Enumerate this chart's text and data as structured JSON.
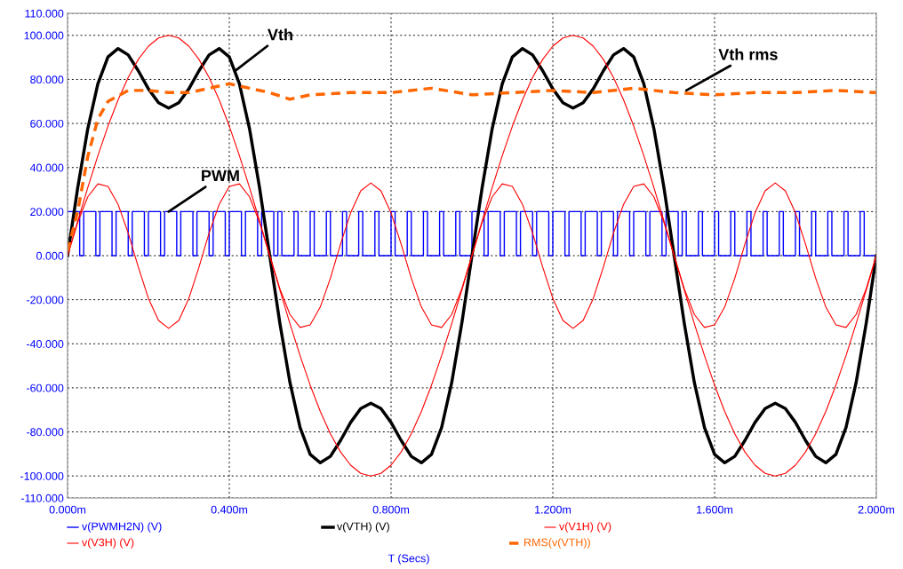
{
  "chart_data": {
    "type": "line",
    "xlabel": "T (Secs)",
    "x": [
      0,
      0.025,
      0.05,
      0.075,
      0.1,
      0.125,
      0.15,
      0.175,
      0.2,
      0.225,
      0.25,
      0.275,
      0.3,
      0.325,
      0.35,
      0.375,
      0.4,
      0.425,
      0.45,
      0.475,
      0.5,
      0.525,
      0.55,
      0.575,
      0.6,
      0.625,
      0.65,
      0.675,
      0.7,
      0.725,
      0.75,
      0.775,
      0.8,
      0.825,
      0.85,
      0.875,
      0.9,
      0.925,
      0.95,
      0.975,
      1.0,
      1.025,
      1.05,
      1.075,
      1.1,
      1.125,
      1.15,
      1.175,
      1.2,
      1.225,
      1.25,
      1.275,
      1.3,
      1.325,
      1.35,
      1.375,
      1.4,
      1.425,
      1.45,
      1.475,
      1.5,
      1.525,
      1.55,
      1.575,
      1.6,
      1.625,
      1.65,
      1.675,
      1.7,
      1.725,
      1.75,
      1.775,
      1.8,
      1.825,
      1.85,
      1.875,
      1.9,
      1.925,
      1.95,
      1.975,
      2.0
    ],
    "series": [
      {
        "name": "v(PWMH2N) (V)",
        "color": "#0000ff",
        "type": "step",
        "x": [
          0,
          0.03,
          0.04,
          0.07,
          0.08,
          0.11,
          0.12,
          0.15,
          0.16,
          0.19,
          0.2,
          0.23,
          0.24,
          0.27,
          0.28,
          0.31,
          0.32,
          0.35,
          0.36,
          0.39,
          0.4,
          0.43,
          0.44,
          0.47,
          0.48,
          0.51,
          0.52,
          0.53,
          0.56,
          0.57,
          0.6,
          0.61,
          0.64,
          0.65,
          0.68,
          0.69,
          0.72,
          0.73,
          0.76,
          0.77,
          0.8,
          0.81,
          0.84,
          0.85,
          0.88,
          0.89,
          0.92,
          0.93,
          0.96,
          0.97,
          1.0,
          1.03,
          1.04,
          1.07,
          1.08,
          1.11,
          1.12,
          1.15,
          1.16,
          1.19,
          1.2,
          1.23,
          1.24,
          1.27,
          1.28,
          1.31,
          1.32,
          1.35,
          1.36,
          1.39,
          1.4,
          1.43,
          1.44,
          1.47,
          1.48,
          1.51,
          1.52,
          1.53,
          1.56,
          1.57,
          1.6,
          1.61,
          1.64,
          1.65,
          1.68,
          1.69,
          1.72,
          1.73,
          1.76,
          1.77,
          1.8,
          1.81,
          1.84,
          1.85,
          1.88,
          1.89,
          1.92,
          1.93,
          1.96,
          1.97,
          2.0
        ],
        "values": [
          20,
          0,
          20,
          0,
          20,
          0,
          20,
          0,
          20,
          0,
          20,
          0,
          20,
          0,
          20,
          0,
          20,
          0,
          20,
          0,
          20,
          0,
          20,
          0,
          20,
          0,
          20,
          0,
          20,
          0,
          20,
          0,
          20,
          0,
          20,
          0,
          20,
          0,
          20,
          0,
          20,
          0,
          20,
          0,
          20,
          0,
          20,
          0,
          20,
          0,
          20,
          0,
          20,
          0,
          20,
          0,
          20,
          0,
          20,
          0,
          20,
          0,
          20,
          0,
          20,
          0,
          20,
          0,
          20,
          0,
          20,
          0,
          20,
          0,
          20,
          0,
          20,
          0,
          20,
          0,
          20,
          0,
          20,
          0,
          20,
          0,
          20,
          0,
          20,
          0,
          20,
          0,
          20,
          0,
          20,
          0,
          20,
          0,
          20,
          0,
          0
        ]
      },
      {
        "name": "v(VTH) (V)",
        "color": "#000000",
        "values": [
          0,
          30.6,
          57.6,
          78,
          90.2,
          94,
          91.1,
          83.9,
          75.7,
          69.4,
          67,
          69.4,
          75.7,
          83.9,
          91.1,
          94,
          90.2,
          78,
          57.6,
          30.6,
          0,
          -30.6,
          -57.6,
          -78,
          -90.2,
          -94,
          -91.1,
          -83.9,
          -75.7,
          -69.4,
          -67,
          -69.4,
          -75.7,
          -83.9,
          -91.1,
          -94,
          -90.2,
          -78,
          -57.6,
          -30.6,
          0,
          30.6,
          57.6,
          78,
          90.2,
          94,
          91.1,
          83.9,
          75.7,
          69.4,
          67,
          69.4,
          75.7,
          83.9,
          91.1,
          94,
          90.2,
          78,
          57.6,
          30.6,
          0,
          -30.6,
          -57.6,
          -78,
          -90.2,
          -94,
          -91.1,
          -83.9,
          -75.7,
          -69.4,
          -67,
          -69.4,
          -75.7,
          -83.9,
          -91.1,
          -94,
          -90.2,
          -78,
          -57.6,
          -30.6,
          0
        ]
      },
      {
        "name": "v(V1H) (V)",
        "color": "#ff0000",
        "values": [
          0,
          15.6,
          30.9,
          45.4,
          58.8,
          70.7,
          80.9,
          89.1,
          95.1,
          98.8,
          100,
          98.8,
          95.1,
          89.1,
          80.9,
          70.7,
          58.8,
          45.4,
          30.9,
          15.6,
          0,
          -15.6,
          -30.9,
          -45.4,
          -58.8,
          -70.7,
          -80.9,
          -89.1,
          -95.1,
          -98.8,
          -100,
          -98.8,
          -95.1,
          -89.1,
          -80.9,
          -70.7,
          -58.8,
          -45.4,
          -30.9,
          -15.6,
          0,
          15.6,
          30.9,
          45.4,
          58.8,
          70.7,
          80.9,
          89.1,
          95.1,
          98.8,
          100,
          98.8,
          95.1,
          89.1,
          80.9,
          70.7,
          58.8,
          45.4,
          30.9,
          15.6,
          0,
          -15.6,
          -30.9,
          -45.4,
          -58.8,
          -70.7,
          -80.9,
          -89.1,
          -95.1,
          -98.8,
          -100,
          -98.8,
          -95.1,
          -89.1,
          -80.9,
          -70.7,
          -58.8,
          -45.4,
          -30.9,
          -15.6,
          0
        ]
      },
      {
        "name": "v(V3H) (V)",
        "color": "#ff0000",
        "values": [
          0,
          15,
          26.7,
          32.6,
          31.4,
          23.3,
          10.2,
          -5.2,
          -19.4,
          -29.4,
          -33,
          -29.4,
          -19.4,
          -5.2,
          10.2,
          23.3,
          31.4,
          32.6,
          26.7,
          15,
          0,
          -15,
          -26.7,
          -32.6,
          -31.4,
          -23.3,
          -10.2,
          5.2,
          19.4,
          29.4,
          33,
          29.4,
          19.4,
          5.2,
          -10.2,
          -23.3,
          -31.4,
          -32.6,
          -26.7,
          -15,
          0,
          15,
          26.7,
          32.6,
          31.4,
          23.3,
          10.2,
          -5.2,
          -19.4,
          -29.4,
          -33,
          -29.4,
          -19.4,
          -5.2,
          10.2,
          23.3,
          31.4,
          32.6,
          26.7,
          15,
          0,
          -15,
          -26.7,
          -32.6,
          -31.4,
          -23.3,
          -10.2,
          5.2,
          19.4,
          29.4,
          33,
          29.4,
          19.4,
          5.2,
          -10.2,
          -23.3,
          -31.4,
          -32.6,
          -26.7,
          -15,
          0
        ]
      },
      {
        "name": "RMS(v(VTH))",
        "color": "#ff6600",
        "line_style": "dashed",
        "x": [
          0,
          0.025,
          0.05,
          0.075,
          0.1,
          0.15,
          0.2,
          0.25,
          0.3,
          0.35,
          0.4,
          0.45,
          0.5,
          0.55,
          0.6,
          0.7,
          0.8,
          0.9,
          1.0,
          1.1,
          1.2,
          1.3,
          1.4,
          1.5,
          1.6,
          1.7,
          1.8,
          1.9,
          2.0
        ],
        "values": [
          2,
          20,
          45,
          62,
          70,
          75,
          75,
          74,
          74,
          76,
          78,
          76,
          74,
          71,
          73,
          74,
          74,
          76,
          73,
          74,
          75,
          74,
          76,
          74,
          73,
          74,
          74,
          75,
          74
        ]
      }
    ],
    "annotations": [
      {
        "text": "Vth",
        "x": 0.415,
        "y": 84
      },
      {
        "text": "Vth rms",
        "x": 1.53,
        "y": 75
      },
      {
        "text": "PWM",
        "x": 0.25,
        "y": 20
      }
    ],
    "xlim": [
      0,
      2.0
    ],
    "xticks": [
      {
        "value": 0,
        "label": "0.000m"
      },
      {
        "value": 0.4,
        "label": "0.400m"
      },
      {
        "value": 0.8,
        "label": "0.800m"
      },
      {
        "value": 1.2,
        "label": "1.200m"
      },
      {
        "value": 1.6,
        "label": "1.600m"
      },
      {
        "value": 2.0,
        "label": "2.000m"
      }
    ],
    "ylim": [
      -110,
      110
    ],
    "yticks": [
      {
        "value": -110,
        "label": "-110.000"
      },
      {
        "value": -100,
        "label": "-100.000"
      },
      {
        "value": -80,
        "label": "-80.000"
      },
      {
        "value": -60,
        "label": "-60.000"
      },
      {
        "value": -40,
        "label": "-40.000"
      },
      {
        "value": -20,
        "label": "-20.000"
      },
      {
        "value": 0,
        "label": "0.000"
      },
      {
        "value": 20,
        "label": "20.000"
      },
      {
        "value": 40,
        "label": "40.000"
      },
      {
        "value": 60,
        "label": "60.000"
      },
      {
        "value": 80,
        "label": "80.000"
      },
      {
        "value": 100,
        "label": "100.000"
      },
      {
        "value": 110,
        "label": "110.000"
      }
    ],
    "grid": true,
    "legend": "bottom",
    "line_style": "solid",
    "marker": "none"
  }
}
